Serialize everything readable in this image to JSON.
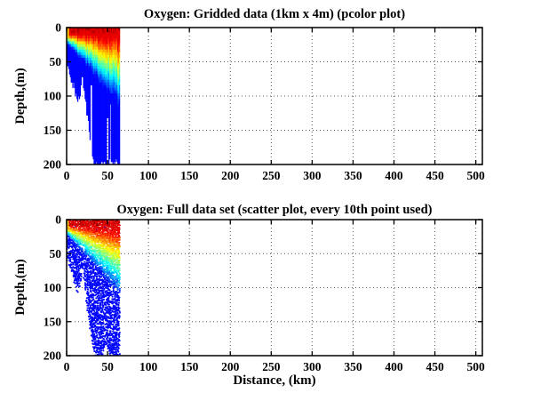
{
  "figure": {
    "background": "#ffffff",
    "text_color": "#000000",
    "axis_color": "#000000",
    "grid_color": "#5a5a5a",
    "grid_style": "dotted"
  },
  "chart_data": [
    {
      "type": "heatmap",
      "title": "Oxygen: Gridded data (1km x 4m) (pcolor plot)",
      "xlabel": "",
      "ylabel": "Depth,(m)",
      "xlim": [
        0,
        508
      ],
      "ylim": [
        0,
        200
      ],
      "y_axis_reversed": true,
      "x_ticks": [
        0,
        50,
        100,
        150,
        200,
        250,
        300,
        350,
        400,
        450,
        500
      ],
      "y_ticks": [
        0,
        50,
        100,
        150,
        200
      ],
      "grid": "on",
      "colormap": "jet",
      "cell_km": 1,
      "cell_m": 4,
      "data_extent_km": [
        0,
        65
      ],
      "field_model": {
        "red_bottom_m": [
          9,
          0.15
        ],
        "blue_top_m": [
          22,
          1.35
        ],
        "bottom_boundary": [
          [
            0,
            57
          ],
          [
            5,
            70
          ],
          [
            10,
            96
          ],
          [
            14,
            107
          ],
          [
            17,
            95
          ],
          [
            19,
            72
          ],
          [
            21,
            85
          ],
          [
            25,
            130
          ],
          [
            30,
            172
          ],
          [
            33,
            200
          ],
          [
            65,
            200
          ]
        ],
        "left_surface_cap": {
          "x_max_km": 3,
          "u_cap": 0.72
        },
        "gap_columns": [
          [
            29,
            30.5,
            85
          ],
          [
            49.5,
            50.8,
            130
          ],
          [
            53,
            54.2,
            112
          ]
        ]
      },
      "oxygen_relative_grid": {
        "comment": "relative oxygen level 1=high(red) 0=low(blue), null=no data",
        "x_bin_centers_km": [
          2.5,
          7.5,
          12.5,
          17.5,
          22.5,
          27.5,
          32.5,
          37.5,
          42.5,
          47.5,
          52.5,
          57.5,
          62.5
        ],
        "depth_bin_centers_m": [
          10,
          30,
          50,
          70,
          90,
          110,
          130,
          150,
          170,
          190
        ],
        "values": [
          [
            0.7,
            0.95,
            0.95,
            0.95,
            0.95,
            0.95,
            0.95,
            0.95,
            0.95,
            0.95,
            0.95,
            0.95,
            0.9
          ],
          [
            0.05,
            0.15,
            0.35,
            0.55,
            0.6,
            0.65,
            0.7,
            0.72,
            0.75,
            0.78,
            0.8,
            0.8,
            0.78
          ],
          [
            0.03,
            0.08,
            0.15,
            0.3,
            0.4,
            0.45,
            0.5,
            0.55,
            0.6,
            0.62,
            0.65,
            0.65,
            0.62
          ],
          [
            null,
            0.05,
            0.08,
            0.15,
            0.25,
            0.3,
            0.35,
            0.4,
            0.45,
            0.48,
            0.5,
            0.52,
            0.5
          ],
          [
            null,
            0.03,
            0.05,
            null,
            0.12,
            0.18,
            0.22,
            0.28,
            0.32,
            0.35,
            0.38,
            0.4,
            0.38
          ],
          [
            null,
            null,
            0.03,
            null,
            0.08,
            0.1,
            0.12,
            0.15,
            0.2,
            0.22,
            0.25,
            0.28,
            0.25
          ],
          [
            null,
            null,
            null,
            null,
            null,
            0.06,
            0.08,
            0.1,
            0.12,
            0.14,
            0.15,
            0.16,
            0.15
          ],
          [
            null,
            null,
            null,
            null,
            null,
            null,
            0.06,
            0.08,
            0.09,
            0.1,
            0.1,
            0.11,
            0.1
          ],
          [
            null,
            null,
            null,
            null,
            null,
            null,
            0.05,
            0.06,
            0.07,
            0.08,
            0.08,
            0.08,
            0.08
          ],
          [
            null,
            null,
            null,
            null,
            null,
            null,
            null,
            0.05,
            0.06,
            0.06,
            0.07,
            0.07,
            0.06
          ]
        ]
      }
    },
    {
      "type": "scatter",
      "title": "Oxygen: Full data set (scatter plot, every 10th point used)",
      "xlabel": "Distance, (km)",
      "ylabel": "Depth,(m)",
      "xlim": [
        0,
        508
      ],
      "ylim": [
        0,
        200
      ],
      "y_axis_reversed": true,
      "x_ticks": [
        0,
        50,
        100,
        150,
        200,
        250,
        300,
        350,
        400,
        450,
        500
      ],
      "y_ticks": [
        0,
        50,
        100,
        150,
        200
      ],
      "grid": "on",
      "colormap": "jet",
      "subsample": "every 10th point",
      "marker_radius_px": 1.05,
      "field_model": {
        "red_bottom_m": [
          9,
          0.15
        ],
        "blue_top_m": [
          22,
          1.35
        ],
        "bottom_boundary": [
          [
            0,
            57
          ],
          [
            5,
            70
          ],
          [
            10,
            96
          ],
          [
            14,
            107
          ],
          [
            17,
            95
          ],
          [
            19,
            72
          ],
          [
            21,
            85
          ],
          [
            25,
            130
          ],
          [
            30,
            172
          ],
          [
            34,
            200
          ],
          [
            44,
            200
          ],
          [
            47,
            184
          ],
          [
            50,
            186
          ],
          [
            52,
            200
          ],
          [
            65,
            200
          ]
        ],
        "left_surface_cap": {
          "x_max_km": 3,
          "u_cap": 0.72
        },
        "gap_columns": []
      }
    }
  ]
}
